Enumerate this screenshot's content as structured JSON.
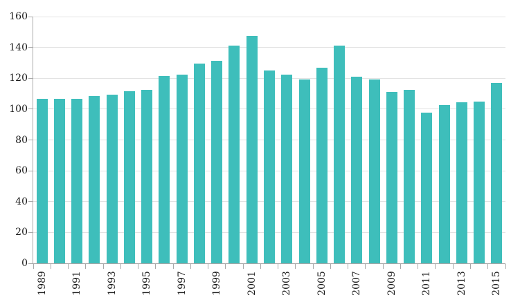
{
  "chart_data": {
    "type": "bar",
    "categories": [
      "1989",
      "1990",
      "1991",
      "1992",
      "1993",
      "1994",
      "1995",
      "1996",
      "1997",
      "1998",
      "1999",
      "2000",
      "2001",
      "2002",
      "2003",
      "2004",
      "2005",
      "2006",
      "2007",
      "2008",
      "2009",
      "2010",
      "2011",
      "2012",
      "2013",
      "2014",
      "2015"
    ],
    "values": [
      106.5,
      106.5,
      106.5,
      108.5,
      109.5,
      111.5,
      112.5,
      121.5,
      122.5,
      129.5,
      131.5,
      141,
      147.5,
      125,
      122.5,
      119,
      127,
      141,
      121,
      119,
      111,
      112.5,
      97.5,
      102.5,
      104.5,
      105,
      117
    ],
    "title": "",
    "xlabel": "",
    "ylabel": "",
    "ylim": [
      0,
      160
    ],
    "ytick_step": 20,
    "ytick_labels": [
      "0",
      "20",
      "40",
      "60",
      "80",
      "100",
      "120",
      "140",
      "160"
    ],
    "xtick_labels_shown": [
      "1989",
      "1991",
      "1993",
      "1995",
      "1997",
      "1999",
      "2001",
      "2003",
      "2005",
      "2007",
      "2009",
      "2011",
      "2013",
      "2015"
    ],
    "xtick_label_every": 2,
    "grid": true,
    "legend": "none",
    "colors": {
      "bar": "#3EBEBB",
      "gridline": "#E2E2E2",
      "axis": "#A8A8A8",
      "text": "#1A1A1A",
      "background": "#FFFFFF"
    }
  }
}
